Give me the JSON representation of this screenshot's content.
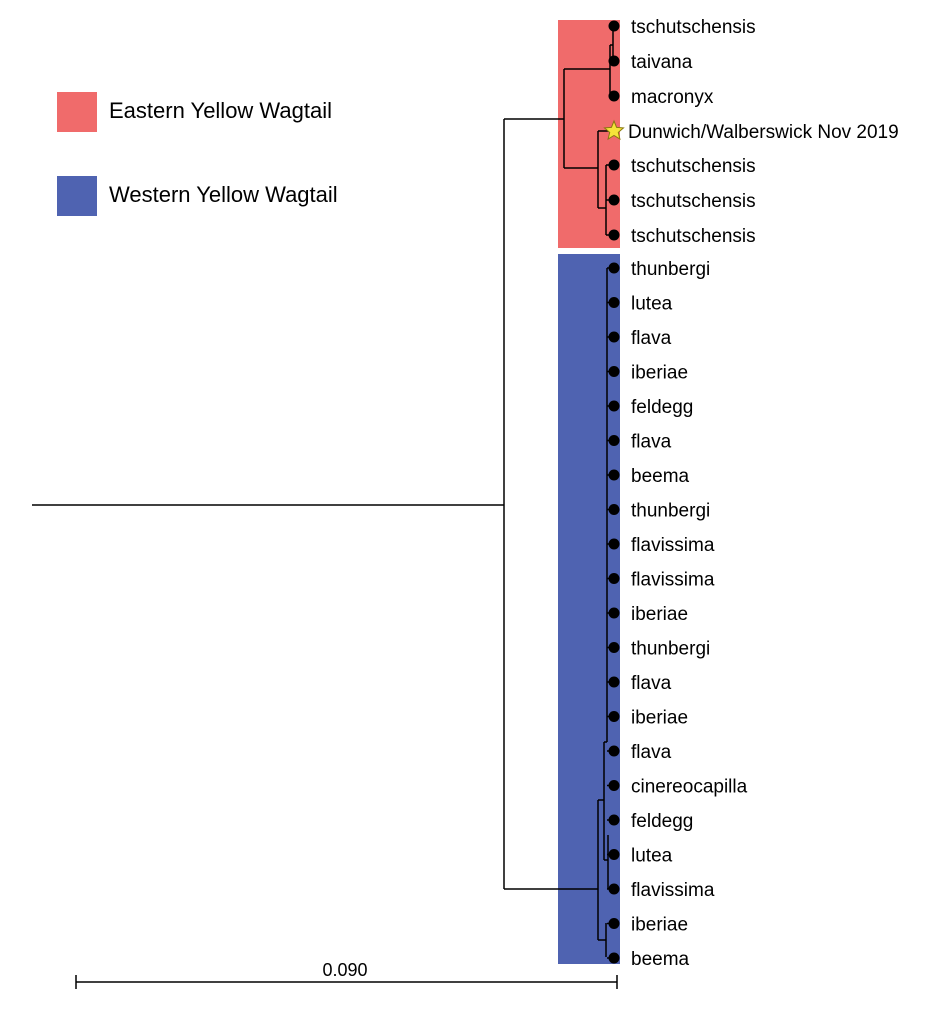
{
  "legend": {
    "eastern": {
      "label": "Eastern Yellow Wagtail",
      "color": "#f06b6b"
    },
    "western": {
      "label": "Western Yellow Wagtail",
      "color": "#4f63b1"
    }
  },
  "colors": {
    "eastern": "#f06b6b",
    "western": "#4f63b1",
    "line": "#000000",
    "star": "#f5e43a"
  },
  "tree": {
    "scale_bar_label": "0.090",
    "eastern_tips": [
      {
        "label": "tschutschensis",
        "marker": "dot"
      },
      {
        "label": "taivana",
        "marker": "dot"
      },
      {
        "label": "macronyx",
        "marker": "dot"
      },
      {
        "label": "Dunwich/Walberswick Nov 2019",
        "marker": "star-icon"
      },
      {
        "label": "tschutschensis",
        "marker": "dot"
      },
      {
        "label": "tschutschensis",
        "marker": "dot"
      },
      {
        "label": "tschutschensis",
        "marker": "dot"
      }
    ],
    "western_tips": [
      {
        "label": "thunbergi",
        "marker": "dot"
      },
      {
        "label": "lutea",
        "marker": "dot"
      },
      {
        "label": "flava",
        "marker": "dot"
      },
      {
        "label": "iberiae",
        "marker": "dot"
      },
      {
        "label": "feldegg",
        "marker": "dot"
      },
      {
        "label": "flava",
        "marker": "dot"
      },
      {
        "label": "beema",
        "marker": "dot"
      },
      {
        "label": "thunbergi",
        "marker": "dot"
      },
      {
        "label": "flavissima",
        "marker": "dot"
      },
      {
        "label": "flavissima",
        "marker": "dot"
      },
      {
        "label": "iberiae",
        "marker": "dot"
      },
      {
        "label": "thunbergi",
        "marker": "dot"
      },
      {
        "label": "flava",
        "marker": "dot"
      },
      {
        "label": "iberiae",
        "marker": "dot"
      },
      {
        "label": "flava",
        "marker": "dot"
      },
      {
        "label": "cinereocapilla",
        "marker": "dot"
      },
      {
        "label": "feldegg",
        "marker": "dot"
      },
      {
        "label": "lutea",
        "marker": "dot"
      },
      {
        "label": "flavissima",
        "marker": "dot"
      },
      {
        "label": "iberiae",
        "marker": "dot"
      },
      {
        "label": "beema",
        "marker": "dot"
      }
    ]
  }
}
